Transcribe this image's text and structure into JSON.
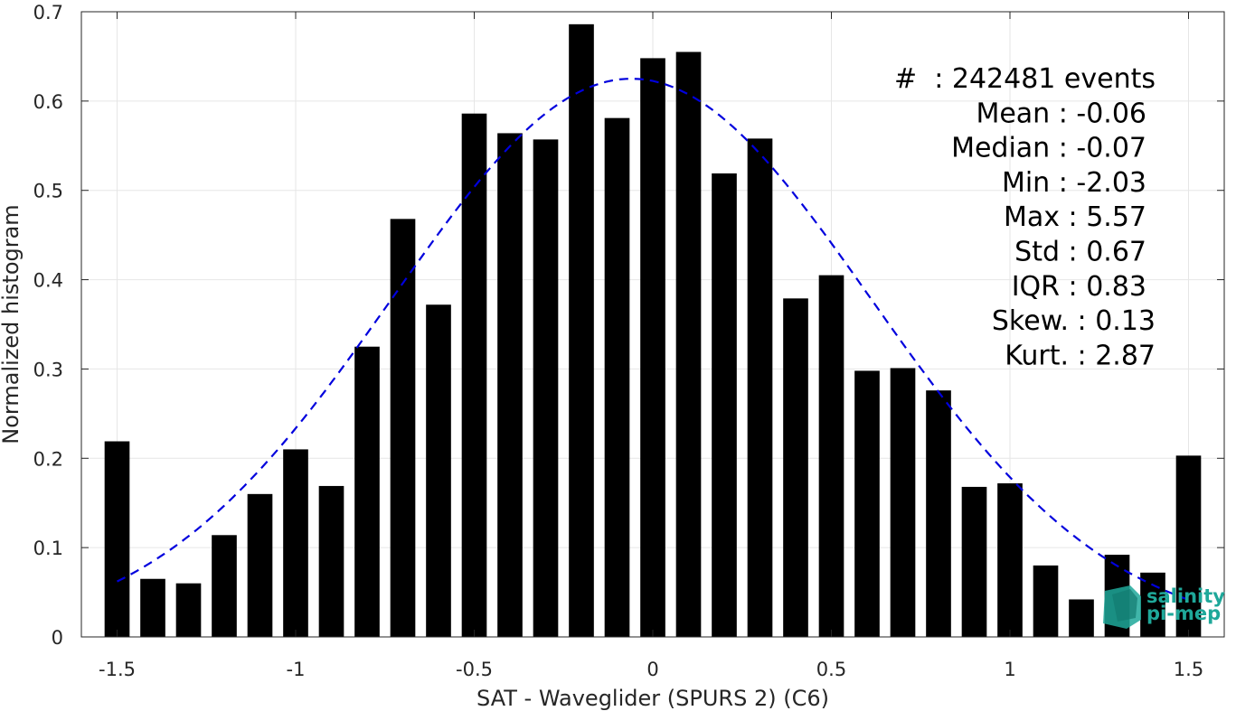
{
  "chart_data": {
    "type": "bar",
    "xlabel": "SAT - Waveglider (SPURS 2) (C6)",
    "ylabel": "Normalized histogram",
    "xlim": [
      -1.6,
      1.6
    ],
    "ylim": [
      0,
      0.7
    ],
    "grid": true,
    "x_ticks": [
      -1.5,
      -1,
      -0.5,
      0,
      0.5,
      1,
      1.5
    ],
    "x_tick_labels": [
      "-1.5",
      "-1",
      "-0.5",
      "0",
      "0.5",
      "1",
      "1.5"
    ],
    "y_ticks": [
      0,
      0.1,
      0.2,
      0.3,
      0.4,
      0.5,
      0.6,
      0.7
    ],
    "y_tick_labels": [
      "0",
      "0.1",
      "0.2",
      "0.3",
      "0.4",
      "0.5",
      "0.6",
      "0.7"
    ],
    "bar_width": 0.07,
    "x": [
      -1.5,
      -1.4,
      -1.3,
      -1.2,
      -1.1,
      -1.0,
      -0.9,
      -0.8,
      -0.7,
      -0.6,
      -0.5,
      -0.4,
      -0.3,
      -0.2,
      -0.1,
      0.0,
      0.1,
      0.2,
      0.3,
      0.4,
      0.5,
      0.6,
      0.7,
      0.8,
      0.9,
      1.0,
      1.1,
      1.2,
      1.3,
      1.4,
      1.5
    ],
    "values": [
      0.219,
      0.065,
      0.06,
      0.114,
      0.16,
      0.21,
      0.169,
      0.325,
      0.468,
      0.372,
      0.586,
      0.564,
      0.557,
      0.686,
      0.581,
      0.648,
      0.655,
      0.519,
      0.558,
      0.379,
      0.405,
      0.298,
      0.301,
      0.276,
      0.168,
      0.172,
      0.08,
      0.042,
      0.092,
      0.072,
      0.203
    ],
    "bar_color": "#000000",
    "fit_curve": {
      "style": "dashed",
      "color": "#0000dd",
      "mean": -0.06,
      "std": 0.67,
      "x_range": [
        -1.5,
        1.5
      ]
    },
    "annotations": [
      {
        "label": "#",
        "value": "  : 242481 events"
      },
      {
        "label": "Mean",
        "value": " : -0.06"
      },
      {
        "label": "Median",
        "value": " : -0.07"
      },
      {
        "label": "Min",
        "value": " : -2.03"
      },
      {
        "label": "Max",
        "value": " : 5.57"
      },
      {
        "label": "Std",
        "value": " : 0.67"
      },
      {
        "label": "IQR",
        "value": " : 0.83"
      },
      {
        "label": "Skew.",
        "value": " : 0.13"
      },
      {
        "label": "Kurt.",
        "value": " : 2.87"
      }
    ]
  },
  "logo": {
    "line1": "salinity",
    "line2": "pi-mep",
    "color": "#1fa89a"
  }
}
